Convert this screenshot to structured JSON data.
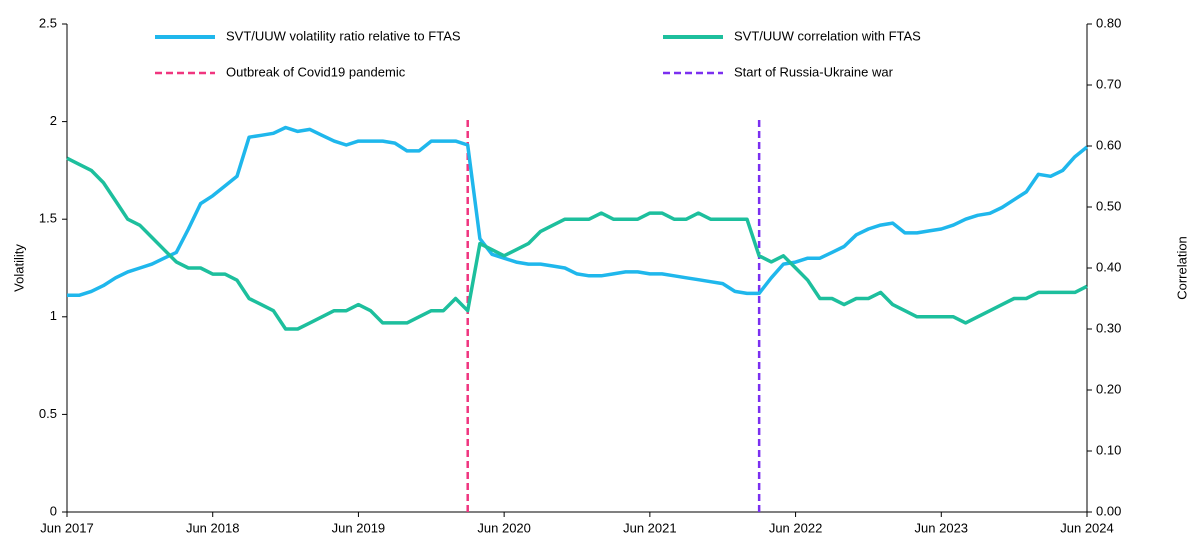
{
  "chart_data": {
    "type": "line",
    "y_label": "Volatility",
    "y2_label": "Correlation",
    "x": [
      "2017-06",
      "2017-07",
      "2017-08",
      "2017-09",
      "2017-10",
      "2017-11",
      "2017-12",
      "2018-01",
      "2018-02",
      "2018-03",
      "2018-04",
      "2018-05",
      "2018-06",
      "2018-07",
      "2018-08",
      "2018-09",
      "2018-10",
      "2018-11",
      "2018-12",
      "2019-01",
      "2019-02",
      "2019-03",
      "2019-04",
      "2019-05",
      "2019-06",
      "2019-07",
      "2019-08",
      "2019-09",
      "2019-10",
      "2019-11",
      "2019-12",
      "2020-01",
      "2020-02",
      "2020-03",
      "2020-04",
      "2020-05",
      "2020-06",
      "2020-07",
      "2020-08",
      "2020-09",
      "2020-10",
      "2020-11",
      "2020-12",
      "2021-01",
      "2021-02",
      "2021-03",
      "2021-04",
      "2021-05",
      "2021-06",
      "2021-07",
      "2021-08",
      "2021-09",
      "2021-10",
      "2021-11",
      "2021-12",
      "2022-01",
      "2022-02",
      "2022-03",
      "2022-04",
      "2022-05",
      "2022-06",
      "2022-07",
      "2022-08",
      "2022-09",
      "2022-10",
      "2022-11",
      "2022-12",
      "2023-01",
      "2023-02",
      "2023-03",
      "2023-04",
      "2023-05",
      "2023-06",
      "2023-07",
      "2023-08",
      "2023-09",
      "2023-10",
      "2023-11",
      "2023-12",
      "2024-01",
      "2024-02",
      "2024-03",
      "2024-04",
      "2024-05",
      "2024-06"
    ],
    "series": [
      {
        "name": "SVT/UUW volatility ratio relative to FTAS",
        "color": "#1fb7ec",
        "axis": "y",
        "values": [
          1.11,
          1.11,
          1.13,
          1.16,
          1.2,
          1.23,
          1.25,
          1.27,
          1.3,
          1.33,
          1.45,
          1.58,
          1.62,
          1.67,
          1.72,
          1.92,
          1.93,
          1.94,
          1.97,
          1.95,
          1.96,
          1.93,
          1.9,
          1.88,
          1.9,
          1.9,
          1.9,
          1.89,
          1.85,
          1.85,
          1.9,
          1.9,
          1.9,
          1.88,
          1.4,
          1.32,
          1.3,
          1.28,
          1.27,
          1.27,
          1.26,
          1.25,
          1.22,
          1.21,
          1.21,
          1.22,
          1.23,
          1.23,
          1.22,
          1.22,
          1.21,
          1.2,
          1.19,
          1.18,
          1.17,
          1.13,
          1.12,
          1.12,
          1.2,
          1.27,
          1.28,
          1.3,
          1.3,
          1.33,
          1.36,
          1.42,
          1.45,
          1.47,
          1.48,
          1.43,
          1.43,
          1.44,
          1.45,
          1.47,
          1.5,
          1.52,
          1.53,
          1.56,
          1.6,
          1.64,
          1.73,
          1.72,
          1.75,
          1.82,
          1.87
        ]
      },
      {
        "name": "SVT/UUW correlation with FTAS",
        "color": "#1dbf9d",
        "axis": "y2",
        "values": [
          0.58,
          0.57,
          0.56,
          0.54,
          0.51,
          0.48,
          0.47,
          0.45,
          0.43,
          0.41,
          0.4,
          0.4,
          0.39,
          0.39,
          0.38,
          0.35,
          0.34,
          0.33,
          0.3,
          0.3,
          0.31,
          0.32,
          0.33,
          0.33,
          0.34,
          0.33,
          0.31,
          0.31,
          0.31,
          0.32,
          0.33,
          0.33,
          0.35,
          0.33,
          0.44,
          0.43,
          0.42,
          0.43,
          0.44,
          0.46,
          0.47,
          0.48,
          0.48,
          0.48,
          0.49,
          0.48,
          0.48,
          0.48,
          0.49,
          0.49,
          0.48,
          0.48,
          0.49,
          0.48,
          0.48,
          0.48,
          0.48,
          0.42,
          0.41,
          0.42,
          0.4,
          0.38,
          0.35,
          0.35,
          0.34,
          0.35,
          0.35,
          0.36,
          0.34,
          0.33,
          0.32,
          0.32,
          0.32,
          0.32,
          0.31,
          0.32,
          0.33,
          0.34,
          0.35,
          0.35,
          0.36,
          0.36,
          0.36,
          0.36,
          0.37
        ]
      }
    ],
    "vlines": [
      {
        "name": "Outbreak of Covid19 pandemic",
        "x": "2020-03",
        "color": "#f0357f"
      },
      {
        "name": "Start of Russia-Ukraine war",
        "x": "2022-03",
        "color": "#7b2ff0"
      }
    ],
    "xlim": [
      "2017-06",
      "2024-06"
    ],
    "xticks": [
      {
        "value": "2017-06",
        "label": "Jun 2017"
      },
      {
        "value": "2018-06",
        "label": "Jun 2018"
      },
      {
        "value": "2019-06",
        "label": "Jun 2019"
      },
      {
        "value": "2020-06",
        "label": "Jun 2020"
      },
      {
        "value": "2021-06",
        "label": "Jun 2021"
      },
      {
        "value": "2022-06",
        "label": "Jun 2022"
      },
      {
        "value": "2023-06",
        "label": "Jun 2023"
      },
      {
        "value": "2024-06",
        "label": "Jun 2024"
      }
    ],
    "ylim": [
      0,
      2.5
    ],
    "yticks": [
      0,
      0.5,
      1,
      1.5,
      2,
      2.5
    ],
    "y2lim": [
      0,
      0.8
    ],
    "y2ticks": [
      {
        "value": 0,
        "label": "0.00"
      },
      {
        "value": 0.1,
        "label": "0.10"
      },
      {
        "value": 0.2,
        "label": "0.20"
      },
      {
        "value": 0.3,
        "label": "0.30"
      },
      {
        "value": 0.4,
        "label": "0.40"
      },
      {
        "value": 0.5,
        "label": "0.50"
      },
      {
        "value": 0.6,
        "label": "0.60"
      },
      {
        "value": 0.7,
        "label": "0.70"
      },
      {
        "value": 0.8,
        "label": "0.80"
      }
    ]
  }
}
